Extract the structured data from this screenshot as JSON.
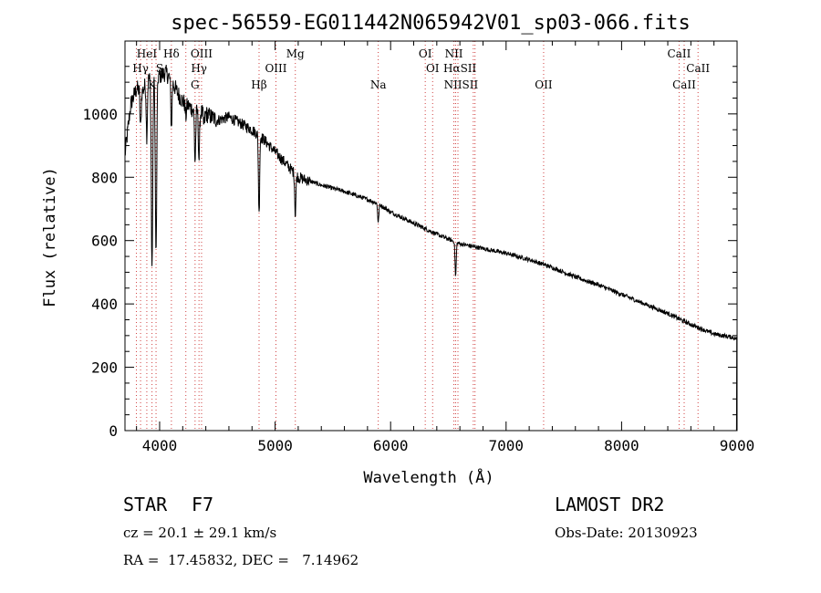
{
  "chart_data": {
    "type": "line",
    "title": "spec-56559-EG011442N065942V01_sp03-066.fits",
    "xlabel": "Wavelength (Å)",
    "ylabel": "Flux (relative)",
    "xlim": [
      3700,
      9000
    ],
    "ylim": [
      0,
      1230
    ],
    "x_ticks": [
      4000,
      5000,
      6000,
      7000,
      8000,
      9000
    ],
    "x_tick_labels": [
      "4000",
      "5000",
      "6000",
      "7000",
      "8000",
      "9000"
    ],
    "y_ticks": [
      0,
      200,
      400,
      600,
      800,
      1000
    ],
    "y_tick_labels": [
      "0",
      "200",
      "400",
      "600",
      "800",
      "1000"
    ],
    "series": [
      {
        "name": "spectrum",
        "color": "#000000",
        "continuum": [
          [
            3700,
            870
          ],
          [
            3750,
            1030
          ],
          [
            3800,
            1080
          ],
          [
            3850,
            1070
          ],
          [
            3900,
            1110
          ],
          [
            3950,
            1110
          ],
          [
            4000,
            1120
          ],
          [
            4050,
            1130
          ],
          [
            4100,
            1110
          ],
          [
            4150,
            1070
          ],
          [
            4200,
            1040
          ],
          [
            4300,
            1010
          ],
          [
            4400,
            1000
          ],
          [
            4500,
            980
          ],
          [
            4600,
            990
          ],
          [
            4700,
            970
          ],
          [
            4800,
            950
          ],
          [
            4900,
            920
          ],
          [
            5000,
            880
          ],
          [
            5100,
            840
          ],
          [
            5200,
            800
          ],
          [
            5400,
            775
          ],
          [
            5600,
            755
          ],
          [
            5800,
            730
          ],
          [
            5900,
            715
          ],
          [
            6000,
            690
          ],
          [
            6200,
            655
          ],
          [
            6400,
            620
          ],
          [
            6600,
            590
          ],
          [
            6800,
            575
          ],
          [
            7000,
            560
          ],
          [
            7200,
            540
          ],
          [
            7400,
            515
          ],
          [
            7600,
            485
          ],
          [
            7800,
            460
          ],
          [
            8000,
            430
          ],
          [
            8200,
            400
          ],
          [
            8400,
            370
          ],
          [
            8600,
            335
          ],
          [
            8800,
            305
          ],
          [
            8950,
            295
          ],
          [
            9000,
            290
          ]
        ],
        "absorption_lines": [
          [
            3835,
            120
          ],
          [
            3889,
            170
          ],
          [
            3934,
            600
          ],
          [
            3969,
            560
          ],
          [
            4102,
            150
          ],
          [
            4227,
            40
          ],
          [
            4307,
            160
          ],
          [
            4341,
            150
          ],
          [
            4384,
            40
          ],
          [
            4861,
            250
          ],
          [
            5175,
            130
          ],
          [
            5893,
            60
          ],
          [
            6563,
            110
          ]
        ]
      }
    ],
    "line_markers": [
      {
        "label": "HeI",
        "wavelength": 3889,
        "row": 1
      },
      {
        "label": "Hγ",
        "wavelength": 3835,
        "row": 2
      },
      {
        "label": "Hδ",
        "wavelength": 4102,
        "row": 1
      },
      {
        "label": "S",
        "wavelength": 4000,
        "row": 2
      },
      {
        "label": "K",
        "wavelength": 3934,
        "row": 3
      },
      {
        "label": "OIII",
        "wavelength": 4363,
        "row": 1
      },
      {
        "label": "Hγ",
        "wavelength": 4341,
        "row": 2
      },
      {
        "label": "G",
        "wavelength": 4307,
        "row": 3
      },
      {
        "label": "Mg",
        "wavelength": 5175,
        "row": 1
      },
      {
        "label": "OIII",
        "wavelength": 5007,
        "row": 2
      },
      {
        "label": "Hβ",
        "wavelength": 4861,
        "row": 3
      },
      {
        "label": "Na",
        "wavelength": 5893,
        "row": 3
      },
      {
        "label": "OI",
        "wavelength": 6300,
        "row": 1
      },
      {
        "label": "OI",
        "wavelength": 6364,
        "row": 2
      },
      {
        "label": "NII",
        "wavelength": 6548,
        "row": 1
      },
      {
        "label": "HαSII",
        "wavelength": 6600,
        "row": 2
      },
      {
        "label": "NIISII",
        "wavelength": 6610,
        "row": 3
      },
      {
        "label": "OII",
        "wavelength": 7325,
        "row": 3
      },
      {
        "label": "CaII",
        "wavelength": 8498,
        "row": 1
      },
      {
        "label": "CaII",
        "wavelength": 8662,
        "row": 2
      },
      {
        "label": "CaII",
        "wavelength": 8542,
        "row": 3
      }
    ],
    "marker_line_wavelengths": [
      3799,
      3835,
      3889,
      3934,
      3969,
      4102,
      4227,
      4307,
      4341,
      4363,
      4861,
      5007,
      5175,
      5893,
      6300,
      6364,
      6548,
      6563,
      6583,
      6716,
      6731,
      7325,
      8498,
      8542,
      8662
    ]
  },
  "info": {
    "object_type": "STAR",
    "subclass": "F7",
    "survey": "LAMOST DR2",
    "cz": "cz = 20.1 ± 29.1 km/s",
    "obs_date": "Obs-Date: 20130923",
    "coords": "RA =  17.45832, DEC =   7.14962"
  }
}
